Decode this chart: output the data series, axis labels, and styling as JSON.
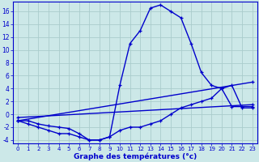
{
  "xlabel": "Graphe des températures (°c)",
  "bg_color": "#cce8e8",
  "grid_color": "#aacccc",
  "line_color": "#0000cc",
  "xlim": [
    -0.5,
    23.5
  ],
  "ylim": [
    -4.5,
    17.5
  ],
  "yticks": [
    -4,
    -2,
    0,
    2,
    4,
    6,
    8,
    10,
    12,
    14,
    16
  ],
  "xticks": [
    0,
    1,
    2,
    3,
    4,
    5,
    6,
    7,
    8,
    9,
    10,
    11,
    12,
    13,
    14,
    15,
    16,
    17,
    18,
    19,
    20,
    21,
    22,
    23
  ],
  "line1_x": [
    0,
    1,
    2,
    3,
    4,
    5,
    6,
    7,
    8,
    9,
    10,
    11,
    12,
    13,
    14,
    15,
    16,
    17,
    18,
    19,
    20,
    21,
    22,
    23
  ],
  "line1_y": [
    -1,
    -1,
    -1.5,
    -1.8,
    -2,
    -2.2,
    -3,
    -4,
    -4,
    -3.5,
    4.5,
    11,
    13,
    16.5,
    17,
    16,
    15,
    11,
    6.5,
    4.5,
    4,
    1.2,
    1.2,
    1.2
  ],
  "line2_x": [
    0,
    1,
    2,
    3,
    4,
    5,
    6,
    7,
    8,
    9,
    10,
    11,
    12,
    13,
    14,
    15,
    16,
    17,
    18,
    19,
    20,
    21,
    22,
    23
  ],
  "line2_y": [
    -1,
    -1.5,
    -2,
    -2.5,
    -3,
    -3,
    -3.5,
    -4,
    -4,
    -3.5,
    -2.5,
    -2,
    -2,
    -1.5,
    -1,
    0,
    1,
    1.5,
    2,
    2.5,
    4,
    4.5,
    1,
    1
  ],
  "line3_x": [
    0,
    23
  ],
  "line3_y": [
    -1,
    5
  ],
  "line4_x": [
    0,
    23
  ],
  "line4_y": [
    -0.5,
    1.5
  ],
  "lw": 1.0,
  "ms": 3.5
}
